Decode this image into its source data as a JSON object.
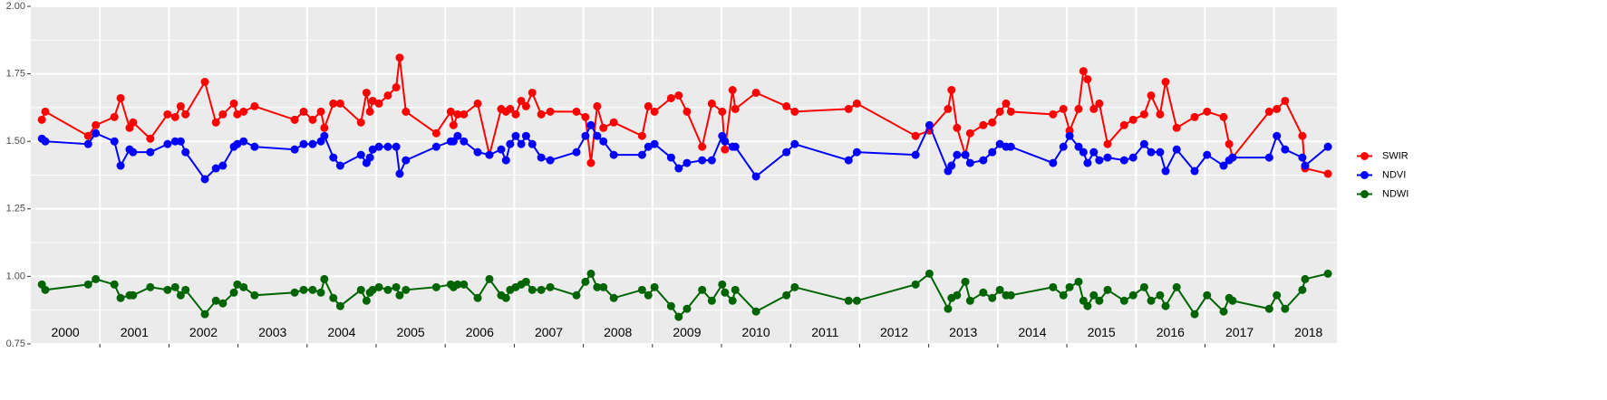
{
  "chart_data": {
    "type": "line",
    "x": [
      2000.16,
      2000.21,
      2000.83,
      2000.94,
      2001.21,
      2001.3,
      2001.43,
      2001.48,
      2001.73,
      2001.98,
      2002.09,
      2002.17,
      2002.24,
      2002.52,
      2002.68,
      2002.78,
      2002.94,
      2002.99,
      2003.08,
      2003.24,
      2003.82,
      2003.95,
      2004.08,
      2004.2,
      2004.25,
      2004.38,
      2004.48,
      2004.78,
      2004.86,
      2004.91,
      2004.95,
      2005.04,
      2005.17,
      2005.29,
      2005.34,
      2005.43,
      2005.87,
      2006.08,
      2006.12,
      2006.18,
      2006.27,
      2006.47,
      2006.64,
      2006.81,
      2006.88,
      2006.94,
      2007.02,
      2007.1,
      2007.17,
      2007.26,
      2007.39,
      2007.52,
      2007.9,
      2008.03,
      2008.11,
      2008.2,
      2008.29,
      2008.44,
      2008.85,
      2008.94,
      2009.03,
      2009.27,
      2009.38,
      2009.5,
      2009.72,
      2009.86,
      2010.01,
      2010.05,
      2010.16,
      2010.2,
      2010.5,
      2010.94,
      2011.06,
      2011.84,
      2011.96,
      2012.81,
      2013.01,
      2013.28,
      2013.33,
      2013.41,
      2013.53,
      2013.6,
      2013.79,
      2013.92,
      2014.03,
      2014.12,
      2014.19,
      2014.8,
      2014.95,
      2015.04,
      2015.17,
      2015.24,
      2015.3,
      2015.39,
      2015.47,
      2015.59,
      2015.83,
      2015.96,
      2016.12,
      2016.22,
      2016.35,
      2016.43,
      2016.59,
      2016.85,
      2017.03,
      2017.27,
      2017.35,
      2017.4,
      2017.93,
      2018.04,
      2018.16,
      2018.41,
      2018.45,
      2018.78
    ],
    "series": [
      {
        "name": "SWIR",
        "color": "#ff0000",
        "values": [
          1.58,
          1.61,
          1.52,
          1.56,
          1.59,
          1.66,
          1.55,
          1.57,
          1.51,
          1.6,
          1.59,
          1.63,
          1.6,
          1.72,
          1.57,
          1.6,
          1.64,
          1.6,
          1.61,
          1.63,
          1.58,
          1.61,
          1.58,
          1.61,
          1.55,
          1.64,
          1.64,
          1.57,
          1.68,
          1.61,
          1.65,
          1.64,
          1.67,
          1.7,
          1.81,
          1.61,
          1.53,
          1.61,
          1.56,
          1.6,
          1.6,
          1.64,
          1.45,
          1.62,
          1.61,
          1.62,
          1.6,
          1.65,
          1.63,
          1.68,
          1.6,
          1.61,
          1.61,
          1.59,
          1.42,
          1.63,
          1.55,
          1.57,
          1.52,
          1.63,
          1.61,
          1.66,
          1.67,
          1.61,
          1.48,
          1.64,
          1.61,
          1.47,
          1.69,
          1.62,
          1.68,
          1.63,
          1.61,
          1.62,
          1.64,
          1.52,
          1.54,
          1.62,
          1.69,
          1.55,
          1.45,
          1.53,
          1.56,
          1.57,
          1.61,
          1.64,
          1.61,
          1.6,
          1.62,
          1.54,
          1.62,
          1.76,
          1.73,
          1.62,
          1.64,
          1.49,
          1.56,
          1.58,
          1.6,
          1.67,
          1.6,
          1.72,
          1.55,
          1.59,
          1.61,
          1.59,
          1.49,
          1.44,
          1.61,
          1.62,
          1.65,
          1.52,
          1.4,
          1.38
        ]
      },
      {
        "name": "NDVI",
        "color": "#0000ff",
        "values": [
          1.51,
          1.5,
          1.49,
          1.53,
          1.5,
          1.41,
          1.47,
          1.46,
          1.46,
          1.49,
          1.5,
          1.5,
          1.46,
          1.36,
          1.4,
          1.41,
          1.48,
          1.49,
          1.5,
          1.48,
          1.47,
          1.49,
          1.49,
          1.5,
          1.52,
          1.44,
          1.41,
          1.45,
          1.42,
          1.44,
          1.47,
          1.48,
          1.48,
          1.48,
          1.38,
          1.43,
          1.48,
          1.5,
          1.5,
          1.52,
          1.5,
          1.46,
          1.45,
          1.47,
          1.43,
          1.49,
          1.52,
          1.49,
          1.52,
          1.49,
          1.44,
          1.43,
          1.46,
          1.52,
          1.56,
          1.52,
          1.5,
          1.45,
          1.45,
          1.48,
          1.49,
          1.44,
          1.4,
          1.42,
          1.43,
          1.43,
          1.52,
          1.5,
          1.48,
          1.48,
          1.37,
          1.46,
          1.49,
          1.43,
          1.46,
          1.45,
          1.56,
          1.39,
          1.41,
          1.45,
          1.45,
          1.42,
          1.43,
          1.46,
          1.49,
          1.48,
          1.48,
          1.42,
          1.48,
          1.52,
          1.48,
          1.46,
          1.42,
          1.46,
          1.43,
          1.44,
          1.43,
          1.44,
          1.49,
          1.46,
          1.46,
          1.39,
          1.47,
          1.39,
          1.45,
          1.41,
          1.43,
          1.44,
          1.44,
          1.52,
          1.47,
          1.44,
          1.41,
          1.48
        ]
      },
      {
        "name": "NDWI",
        "color": "#006400",
        "values": [
          0.97,
          0.95,
          0.97,
          0.99,
          0.97,
          0.92,
          0.93,
          0.93,
          0.96,
          0.95,
          0.96,
          0.93,
          0.95,
          0.86,
          0.91,
          0.9,
          0.94,
          0.97,
          0.96,
          0.93,
          0.94,
          0.95,
          0.95,
          0.94,
          0.99,
          0.92,
          0.89,
          0.95,
          0.91,
          0.94,
          0.95,
          0.96,
          0.95,
          0.96,
          0.93,
          0.95,
          0.96,
          0.97,
          0.96,
          0.97,
          0.97,
          0.92,
          0.99,
          0.93,
          0.92,
          0.95,
          0.96,
          0.97,
          0.98,
          0.95,
          0.95,
          0.96,
          0.93,
          0.98,
          1.01,
          0.96,
          0.96,
          0.92,
          0.95,
          0.93,
          0.96,
          0.89,
          0.85,
          0.88,
          0.95,
          0.91,
          0.97,
          0.94,
          0.91,
          0.95,
          0.87,
          0.93,
          0.96,
          0.91,
          0.91,
          0.97,
          1.01,
          0.88,
          0.92,
          0.93,
          0.98,
          0.91,
          0.94,
          0.92,
          0.95,
          0.93,
          0.93,
          0.96,
          0.93,
          0.96,
          0.98,
          0.91,
          0.89,
          0.93,
          0.91,
          0.95,
          0.91,
          0.93,
          0.96,
          0.91,
          0.93,
          0.89,
          0.96,
          0.86,
          0.93,
          0.87,
          0.92,
          0.91,
          0.88,
          0.93,
          0.88,
          0.95,
          0.99,
          1.01
        ]
      }
    ],
    "xlim": [
      2000,
      2018.91
    ],
    "xticks": [
      2001,
      2002,
      2003,
      2004,
      2005,
      2006,
      2007,
      2008,
      2009,
      2010,
      2011,
      2012,
      2013,
      2014,
      2015,
      2016,
      2017,
      2018
    ],
    "ylim": [
      0.75,
      2.0
    ],
    "yticks": [
      0.75,
      {
        "value": 1.0,
        "label": "1.00"
      },
      1.25,
      {
        "value": 1.5,
        "label": "1.50"
      },
      1.75,
      {
        "value": 2.0,
        "label": "2.00"
      }
    ],
    "yminorticks": [
      0.875,
      1.125,
      1.375,
      1.625,
      1.875
    ],
    "grid": true,
    "legend": "right",
    "annotations": [
      {
        "text": "2000",
        "x": 2000.5,
        "y": 0.79
      },
      {
        "text": "2001",
        "x": 2001.5,
        "y": 0.79
      },
      {
        "text": "2002",
        "x": 2002.5,
        "y": 0.79
      },
      {
        "text": "2003",
        "x": 2003.5,
        "y": 0.79
      },
      {
        "text": "2004",
        "x": 2004.5,
        "y": 0.79
      },
      {
        "text": "2005",
        "x": 2005.5,
        "y": 0.79
      },
      {
        "text": "2006",
        "x": 2006.5,
        "y": 0.79
      },
      {
        "text": "2007",
        "x": 2007.5,
        "y": 0.79
      },
      {
        "text": "2008",
        "x": 2008.5,
        "y": 0.79
      },
      {
        "text": "2009",
        "x": 2009.5,
        "y": 0.79
      },
      {
        "text": "2010",
        "x": 2010.5,
        "y": 0.79
      },
      {
        "text": "2011",
        "x": 2011.5,
        "y": 0.79
      },
      {
        "text": "2012",
        "x": 2012.5,
        "y": 0.79
      },
      {
        "text": "2013",
        "x": 2013.5,
        "y": 0.79
      },
      {
        "text": "2014",
        "x": 2014.5,
        "y": 0.79
      },
      {
        "text": "2015",
        "x": 2015.5,
        "y": 0.79
      },
      {
        "text": "2016",
        "x": 2016.5,
        "y": 0.79
      },
      {
        "text": "2017",
        "x": 2017.5,
        "y": 0.79
      },
      {
        "text": "2018",
        "x": 2018.5,
        "y": 0.79
      }
    ]
  }
}
